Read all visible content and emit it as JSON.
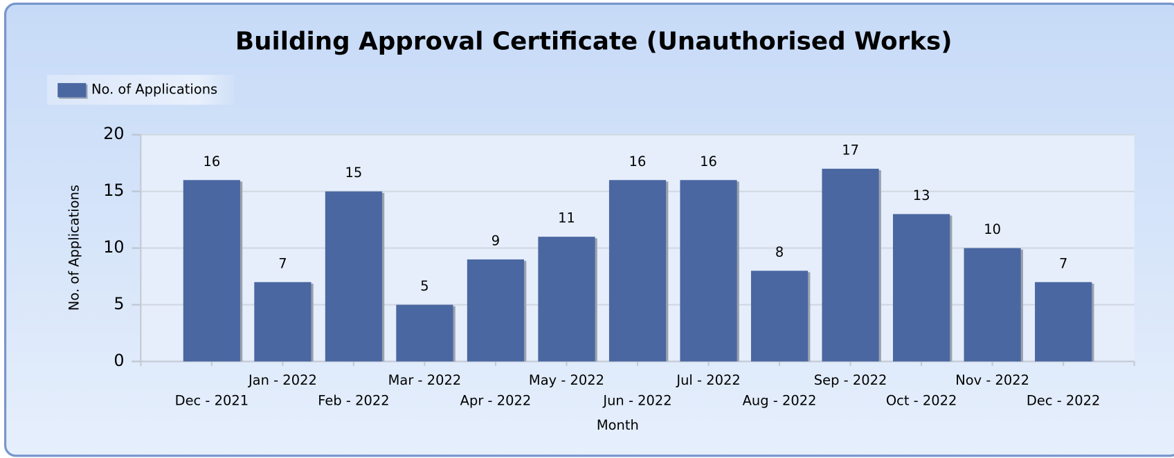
{
  "chart_data": {
    "type": "bar",
    "title": "Building Approval Certificate (Unauthorised Works)",
    "x_label": "Month",
    "y_label": "No. of Applications",
    "categories": [
      "Dec - 2021",
      "Jan - 2022",
      "Feb - 2022",
      "Mar - 2022",
      "Apr - 2022",
      "May - 2022",
      "Jun - 2022",
      "Jul - 2022",
      "Aug - 2022",
      "Sep - 2022",
      "Oct - 2022",
      "Nov - 2022",
      "Dec - 2022"
    ],
    "series": [
      {
        "name": "No. of Applications",
        "color": "#4a67a1",
        "values": [
          16,
          7,
          15,
          5,
          9,
          11,
          16,
          16,
          8,
          17,
          13,
          10,
          7
        ]
      }
    ],
    "ylim": [
      0,
      20
    ],
    "yticks": [
      0,
      5,
      10,
      15,
      20
    ],
    "grid": true,
    "legend": "top-left"
  }
}
